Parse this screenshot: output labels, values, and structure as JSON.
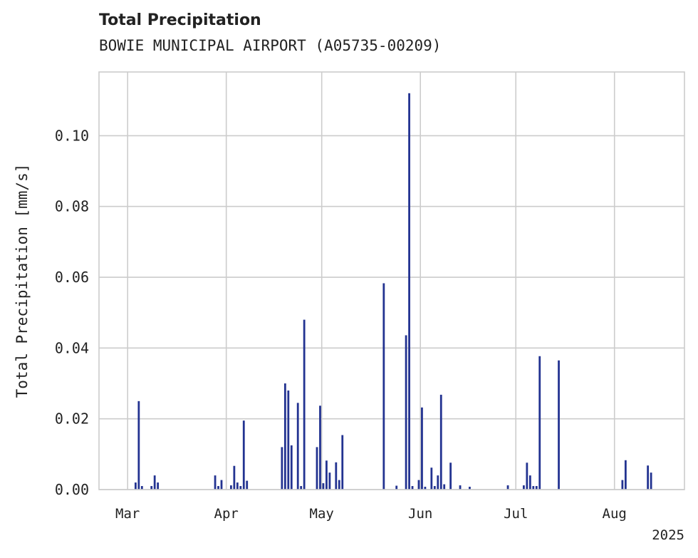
{
  "chart_data": {
    "type": "bar",
    "title": "Total Precipitation",
    "subtitle": "BOWIE MUNICIPAL AIRPORT (A05735-00209)",
    "xlabel": "",
    "ylabel": "Total Precipitation [mm/s]",
    "x_axis": {
      "type": "date",
      "range": [
        "2025-02-20",
        "2025-08-23"
      ],
      "ticks": [
        {
          "date": "2025-03-01",
          "label": "Mar"
        },
        {
          "date": "2025-04-01",
          "label": "Apr"
        },
        {
          "date": "2025-05-01",
          "label": "May"
        },
        {
          "date": "2025-06-01",
          "label": "Jun"
        },
        {
          "date": "2025-07-01",
          "label": "Jul"
        },
        {
          "date": "2025-08-01",
          "label": "Aug"
        }
      ],
      "offset_label": "2025"
    },
    "y_axis": {
      "range": [
        0,
        0.118
      ],
      "ticks": [
        {
          "value": 0.0,
          "label": "0.00"
        },
        {
          "value": 0.02,
          "label": "0.02"
        },
        {
          "value": 0.04,
          "label": "0.04"
        },
        {
          "value": 0.06,
          "label": "0.06"
        },
        {
          "value": 0.08,
          "label": "0.08"
        },
        {
          "value": 0.1,
          "label": "0.10"
        }
      ]
    },
    "grid": true,
    "color": "#233391",
    "series": [
      {
        "x": [
          "2025-03-03",
          "2025-03-04",
          "2025-03-05",
          "2025-03-08",
          "2025-03-09",
          "2025-03-10",
          "2025-03-28",
          "2025-03-29",
          "2025-03-30",
          "2025-04-02",
          "2025-04-03",
          "2025-04-04",
          "2025-04-05",
          "2025-04-06",
          "2025-04-07",
          "2025-04-18",
          "2025-04-19",
          "2025-04-20",
          "2025-04-21",
          "2025-04-23",
          "2025-04-24",
          "2025-04-25",
          "2025-04-29",
          "2025-04-30",
          "2025-05-01",
          "2025-05-02",
          "2025-05-03",
          "2025-05-05",
          "2025-05-06",
          "2025-05-07",
          "2025-05-20",
          "2025-05-24",
          "2025-05-27",
          "2025-05-28",
          "2025-05-29",
          "2025-05-31",
          "2025-06-01",
          "2025-06-02",
          "2025-06-04",
          "2025-06-05",
          "2025-06-06",
          "2025-06-07",
          "2025-06-08",
          "2025-06-10",
          "2025-06-13",
          "2025-06-16",
          "2025-06-28",
          "2025-07-03",
          "2025-07-04",
          "2025-07-05",
          "2025-07-06",
          "2025-07-07",
          "2025-07-08",
          "2025-07-14",
          "2025-08-03",
          "2025-08-04",
          "2025-08-11",
          "2025-08-12"
        ],
        "values": [
          0.002,
          0.025,
          0.001,
          0.001,
          0.004,
          0.002,
          0.004,
          0.001,
          0.0027,
          0.0012,
          0.0067,
          0.002,
          0.001,
          0.0195,
          0.0025,
          0.012,
          0.03,
          0.028,
          0.0125,
          0.0245,
          0.001,
          0.048,
          0.012,
          0.0237,
          0.0018,
          0.0082,
          0.0048,
          0.0077,
          0.0027,
          0.0154,
          0.0583,
          0.0011,
          0.0436,
          0.112,
          0.001,
          0.0027,
          0.0232,
          0.0008,
          0.0062,
          0.001,
          0.004,
          0.0268,
          0.0015,
          0.0076,
          0.0012,
          0.0008,
          0.0012,
          0.0012,
          0.0076,
          0.004,
          0.001,
          0.001,
          0.0377,
          0.0365,
          0.0027,
          0.0083,
          0.0068,
          0.0048
        ]
      }
    ]
  }
}
